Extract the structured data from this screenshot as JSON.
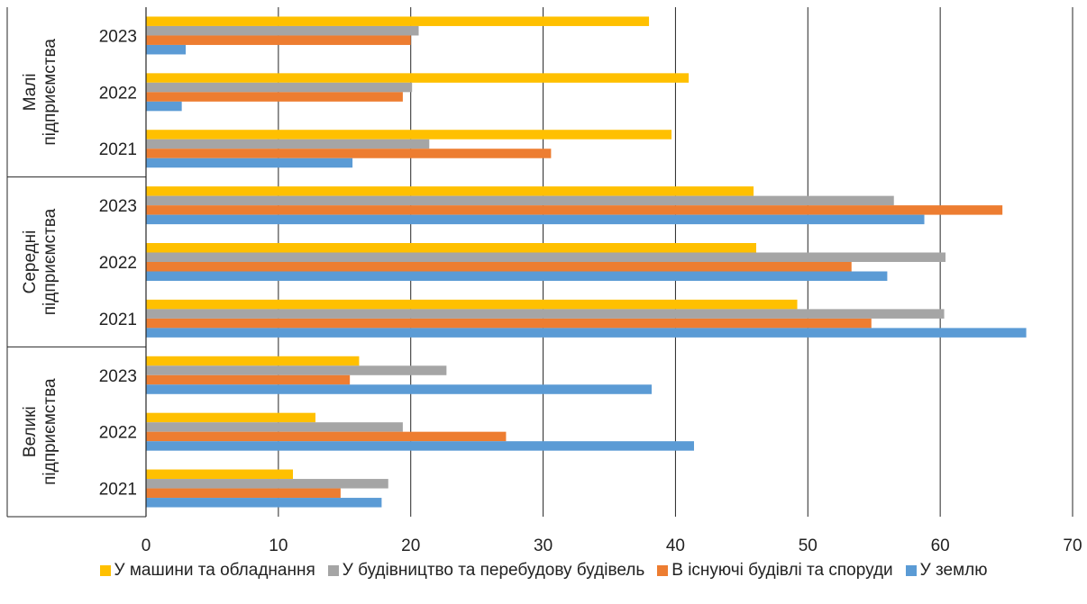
{
  "chart_data": {
    "type": "bar",
    "orientation": "horizontal",
    "title": "",
    "xlabel": "",
    "ylabel": "",
    "xlim": [
      0,
      70
    ],
    "x_ticks": [
      "0",
      "10",
      "20",
      "30",
      "40",
      "50",
      "60",
      "70"
    ],
    "grid": "vertical",
    "legend_position": "bottom",
    "groups": [
      {
        "name": "Малі\nпідприємства",
        "years": [
          "2023",
          "2022",
          "2021"
        ]
      },
      {
        "name": "Середні\nпідприємства",
        "years": [
          "2023",
          "2022",
          "2021"
        ]
      },
      {
        "name": "Великі\nпідприємства",
        "years": [
          "2023",
          "2022",
          "2021"
        ]
      }
    ],
    "series": [
      {
        "name": "У машини та обладнання",
        "color": "#ffc000",
        "values": [
          38.0,
          41.0,
          39.7,
          45.9,
          46.1,
          49.2,
          16.1,
          12.8,
          11.1
        ]
      },
      {
        "name": "У будівництво та перебудову будівель",
        "color": "#a5a5a5",
        "values": [
          20.6,
          20.1,
          21.4,
          56.5,
          60.4,
          60.3,
          22.7,
          19.4,
          18.3
        ]
      },
      {
        "name": "В існуючі будівлі та споруди",
        "color": "#ed7d31",
        "values": [
          20.0,
          19.4,
          30.6,
          64.7,
          53.3,
          54.8,
          15.4,
          27.2,
          14.7
        ]
      },
      {
        "name": "У землю",
        "color": "#5b9bd5",
        "values": [
          3.0,
          2.7,
          15.6,
          58.8,
          56.0,
          66.5,
          38.2,
          41.4,
          17.8
        ]
      }
    ]
  }
}
